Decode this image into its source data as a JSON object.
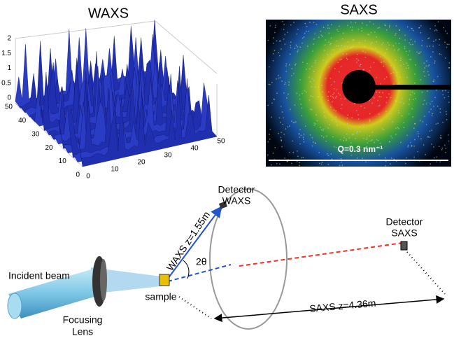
{
  "waxs": {
    "title": "WAXS",
    "z_ticks": [
      "0",
      "0.5",
      "1",
      "1.5",
      "2"
    ],
    "y_ticks": [
      "0",
      "10",
      "20",
      "30",
      "40",
      "50"
    ],
    "x_ticks": [
      "0",
      "10",
      "20",
      "30",
      "40",
      "50"
    ]
  },
  "saxs": {
    "title": "SAXS",
    "scale_label": "Q=0.3 nm⁻¹"
  },
  "setup": {
    "detector_waxs": [
      "Detector",
      "WAXS"
    ],
    "detector_saxs": [
      "Detector",
      "SAXS"
    ],
    "waxs_distance": "WAXS z=1.55m",
    "angle": "2θ",
    "incident_beam": "Incident beam",
    "sample": "sample",
    "lens": [
      "Focusing",
      "Lens"
    ],
    "saxs_distance": "SAXS z=4.36m"
  }
}
